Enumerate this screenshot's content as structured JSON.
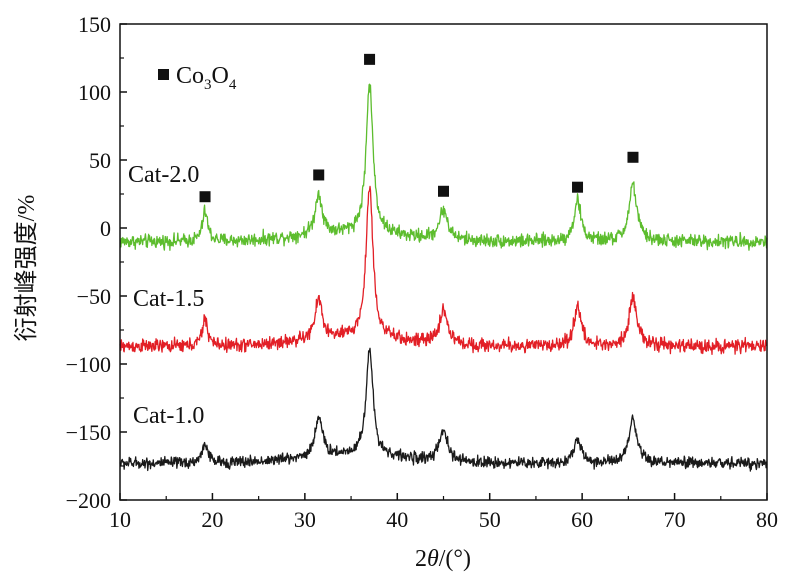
{
  "chart_data": {
    "type": "line",
    "xlabel_prefix": "2",
    "xlabel_symbol": "θ",
    "xlabel_unit": "/(°)",
    "ylabel": "衍射峰强度/%",
    "xlim": [
      10,
      80
    ],
    "ylim": [
      -200,
      150
    ],
    "xticks": [
      10,
      20,
      30,
      40,
      50,
      60,
      70,
      80
    ],
    "yticks": [
      150,
      100,
      50,
      0,
      -50,
      -100,
      -150,
      -200
    ],
    "ytick_labels": [
      "150",
      "100",
      "50",
      "0",
      "−50",
      "−100",
      "−150",
      "−200"
    ],
    "grid": false,
    "legend": {
      "position": "top-left",
      "marker": "square",
      "base": "Co",
      "sub1": "3",
      "mid": "O",
      "sub2": "4"
    },
    "peaks": [
      {
        "x": 19.2,
        "w": 0.35
      },
      {
        "x": 31.5,
        "w": 0.45
      },
      {
        "x": 37.0,
        "w": 0.45
      },
      {
        "x": 45.0,
        "w": 0.55
      },
      {
        "x": 59.5,
        "w": 0.45
      },
      {
        "x": 65.5,
        "w": 0.5
      }
    ],
    "series": [
      {
        "name": "Cat-2.0",
        "color": "#5dbd2e",
        "baseline": -10,
        "noise": 3.5,
        "heights": [
          22,
          30,
          110,
          22,
          30,
          42
        ]
      },
      {
        "name": "Cat-1.5",
        "color": "#e21f26",
        "baseline": -87,
        "noise": 3.5,
        "heights": [
          20,
          30,
          112,
          25,
          30,
          37
        ]
      },
      {
        "name": "Cat-1.0",
        "color": "#1a1a1a",
        "baseline": -173,
        "noise": 3.0,
        "heights": [
          15,
          30,
          78,
          22,
          18,
          32
        ]
      }
    ],
    "markers": [
      {
        "x": 19.2,
        "y": 23
      },
      {
        "x": 31.5,
        "y": 39
      },
      {
        "x": 37.0,
        "y": 124
      },
      {
        "x": 45.0,
        "y": 27
      },
      {
        "x": 59.5,
        "y": 30
      },
      {
        "x": 65.5,
        "y": 52
      }
    ]
  }
}
